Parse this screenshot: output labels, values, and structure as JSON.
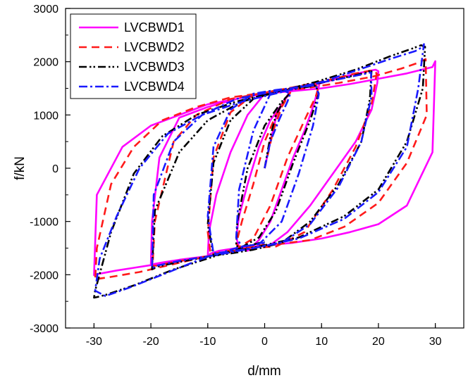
{
  "chart_data": {
    "type": "line",
    "xlabel": "d/mm",
    "ylabel": "f/kN",
    "xlim": [
      -35,
      35
    ],
    "ylim": [
      -3000,
      3000
    ],
    "xticks": [
      -30,
      -20,
      -10,
      0,
      10,
      20,
      30
    ],
    "yticks": [
      -3000,
      -2000,
      -1000,
      0,
      1000,
      2000,
      3000
    ],
    "x_tick_labels": [
      "-30",
      "-20",
      "-10",
      "0",
      "10",
      "20",
      "30"
    ],
    "y_tick_labels": [
      "-3000",
      "-2000",
      "-1000",
      "0",
      "1000",
      "2000",
      "3000"
    ],
    "grid": false,
    "legend_position": "top-left",
    "series": [
      {
        "name": "LVCBWD1",
        "color": "#ff00ff",
        "dash": "solid",
        "x": [
          0,
          1,
          2,
          3,
          4.2,
          4.5,
          4.2,
          3,
          1,
          -1,
          -3,
          -4.5,
          -5,
          -4.5,
          -3,
          -1,
          1,
          3,
          5,
          7,
          8.5,
          9.3,
          9.6,
          9.5,
          8.5,
          6,
          3,
          0,
          -3,
          -6,
          -8.5,
          -9.8,
          -10,
          -9.5,
          -8,
          -5,
          -2,
          1,
          4,
          8,
          12,
          16,
          18.8,
          19.8,
          20,
          19.5,
          18.5,
          15,
          10,
          5,
          0,
          -5,
          -10,
          -15,
          -18.5,
          -19.8,
          -20,
          -19.5,
          -18,
          -15,
          -10,
          -5,
          0,
          5,
          10,
          15,
          20,
          25,
          29.5,
          30,
          29.5,
          28,
          25,
          20,
          15,
          10,
          5,
          0,
          -5,
          -10,
          -15,
          -20,
          -25,
          -29.5,
          -30,
          -29.5,
          -28,
          -26,
          -23,
          -20,
          -15,
          -10,
          -5,
          0
        ],
        "y": [
          0,
          500,
          950,
          1200,
          1380,
          1500,
          1400,
          1200,
          900,
          400,
          -300,
          -900,
          -1300,
          -1480,
          -1550,
          -1350,
          -1000,
          -400,
          200,
          700,
          1150,
          1450,
          1570,
          1600,
          1580,
          1500,
          1450,
          1400,
          1000,
          300,
          -500,
          -1200,
          -1650,
          -1600,
          -1550,
          -1500,
          -1470,
          -1440,
          -1200,
          -700,
          -100,
          500,
          1100,
          1600,
          1820,
          1850,
          1830,
          1750,
          1600,
          1480,
          1400,
          1300,
          1150,
          950,
          200,
          -1000,
          -1800,
          -1800,
          -1770,
          -1720,
          -1650,
          -1550,
          -1450,
          -1400,
          -1320,
          -1200,
          -1050,
          -700,
          300,
          2010,
          1900,
          1860,
          1780,
          1680,
          1580,
          1500,
          1450,
          1400,
          1300,
          1200,
          1000,
          800,
          400,
          -500,
          -2010,
          -1990,
          -1960,
          -1920,
          -1870,
          -1820,
          -1750,
          -1650,
          -1550,
          -1450
        ]
      },
      {
        "name": "LVCBWD2",
        "color": "#ff1a1a",
        "dash": "dashed",
        "x": [
          0,
          1.5,
          3,
          4.5,
          4.2,
          2,
          0,
          -2,
          -4,
          -5,
          -4.5,
          -2,
          1,
          4,
          7,
          9,
          9.5,
          9,
          6,
          2,
          -2,
          -6,
          -9,
          -10,
          -9.5,
          -7,
          -3,
          2,
          7,
          12,
          16,
          18.8,
          19.7,
          19,
          16,
          11,
          5,
          0,
          -6,
          -12,
          -16,
          -19.3,
          -19.7,
          -19,
          -16,
          -10,
          -4,
          2,
          8,
          14,
          20,
          25,
          28.5,
          28.3,
          27,
          24,
          19,
          13,
          7,
          0,
          -6,
          -12,
          -18,
          -23,
          -27,
          -29.5,
          -29.8,
          -29.5,
          -27,
          -22,
          -16,
          -10,
          -4,
          0
        ],
        "y": [
          0,
          700,
          1150,
          1420,
          1380,
          1000,
          500,
          -300,
          -1000,
          -1420,
          -1480,
          -1320,
          -700,
          200,
          900,
          1350,
          1540,
          1560,
          1500,
          1460,
          1380,
          1050,
          200,
          -1200,
          -1620,
          -1560,
          -1500,
          -1470,
          -1200,
          -400,
          400,
          1200,
          1780,
          1840,
          1780,
          1650,
          1520,
          1420,
          1300,
          1000,
          500,
          -1000,
          -1830,
          -1830,
          -1760,
          -1650,
          -1520,
          -1430,
          -1350,
          -1100,
          -650,
          100,
          1000,
          2050,
          1980,
          1870,
          1720,
          1600,
          1500,
          1420,
          1330,
          1150,
          900,
          400,
          -300,
          -1500,
          -2100,
          -2080,
          -2040,
          -1950,
          -1800,
          -1650,
          -1520,
          -1430
        ]
      },
      {
        "name": "LVCBWD3",
        "color": "#000000",
        "dash": "dashdotdot",
        "x": [
          0,
          1,
          2,
          3.5,
          4.2,
          3,
          0,
          -3,
          -4.8,
          -5,
          -4,
          -1,
          2,
          5,
          8,
          9.5,
          9,
          6,
          2,
          -2,
          -6,
          -9,
          -10,
          -9,
          -6,
          -2,
          3,
          8,
          13,
          17,
          18.5,
          18.8,
          18,
          14,
          8,
          2,
          -4,
          -10,
          -15,
          -19.3,
          -19.8,
          -19,
          -15,
          -8,
          -1,
          6,
          14,
          20,
          25,
          27.8,
          28.2,
          27.5,
          26,
          22,
          16,
          9,
          2,
          -5,
          -12,
          -18,
          -23,
          -27,
          -29.8,
          -30,
          -29.5,
          -28,
          -23,
          -16,
          -9,
          -3,
          0
        ],
        "y": [
          0,
          600,
          1000,
          1300,
          1380,
          1250,
          800,
          0,
          -1000,
          -1460,
          -1480,
          -1300,
          -800,
          100,
          900,
          1400,
          1550,
          1500,
          1430,
          1300,
          900,
          100,
          -1050,
          -1640,
          -1600,
          -1530,
          -1400,
          -1000,
          -300,
          500,
          1300,
          1850,
          1800,
          1700,
          1560,
          1430,
          1250,
          900,
          300,
          -800,
          -1900,
          -1850,
          -1760,
          -1620,
          -1470,
          -1300,
          -900,
          -400,
          500,
          1500,
          2280,
          2310,
          2250,
          2100,
          1850,
          1620,
          1430,
          1250,
          1000,
          600,
          -100,
          -1200,
          -2300,
          -2430,
          -2420,
          -2380,
          -2200,
          -1900,
          -1660,
          -1460,
          -1380
        ]
      },
      {
        "name": "LVCBWD4",
        "color": "#1a1aff",
        "dash": "dashdot",
        "x": [
          0,
          1,
          2.5,
          4,
          4.5,
          3.5,
          1,
          -2,
          -4.5,
          -5,
          -4,
          -1,
          3,
          6,
          8.5,
          9.5,
          9,
          6,
          2,
          -2,
          -6,
          -9,
          -10,
          -9,
          -6,
          -2,
          3,
          8,
          13,
          17,
          18.8,
          18.7,
          17.5,
          13,
          7,
          1,
          -5,
          -11,
          -16,
          -19.5,
          -19.8,
          -19,
          -15,
          -8,
          -1,
          6,
          14,
          20,
          25,
          27,
          28,
          27.8,
          26.5,
          22,
          16,
          10,
          3,
          -4,
          -11,
          -17,
          -22,
          -26,
          -29,
          -29.8,
          -28,
          -24,
          -18,
          -11,
          -5,
          0
        ],
        "y": [
          0,
          500,
          900,
          1250,
          1400,
          1450,
          1400,
          700,
          -400,
          -1300,
          -1470,
          -1430,
          -1000,
          -100,
          800,
          1380,
          1560,
          1520,
          1470,
          1400,
          1100,
          400,
          -900,
          -1600,
          -1560,
          -1500,
          -1400,
          -1050,
          -350,
          500,
          1350,
          1800,
          1770,
          1670,
          1550,
          1430,
          1300,
          1000,
          500,
          -500,
          -1880,
          -1830,
          -1740,
          -1620,
          -1480,
          -1320,
          -950,
          -450,
          400,
          1500,
          2330,
          2280,
          2200,
          2050,
          1830,
          1620,
          1430,
          1250,
          1000,
          650,
          0,
          -900,
          -1700,
          -2300,
          -2400,
          -2250,
          -2000,
          -1700,
          -1500,
          -1400
        ]
      }
    ]
  }
}
